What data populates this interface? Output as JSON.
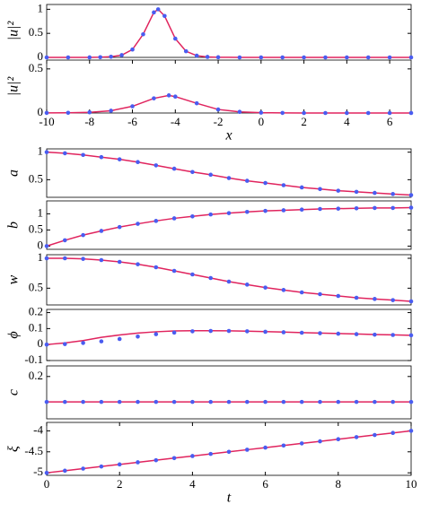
{
  "chart_data": [
    {
      "type": "line",
      "ylabel": "|u|²",
      "x": [
        -10,
        -9,
        -8,
        -7.5,
        -7,
        -6.5,
        -6,
        -5.5,
        -5,
        -4.8,
        -4.5,
        -4,
        -3.5,
        -3,
        -2.5,
        -2,
        -1,
        0,
        1,
        2,
        3,
        4,
        5,
        6,
        7
      ],
      "series": [
        {
          "color": "#e0245e",
          "mode": "line",
          "values": [
            0,
            0,
            0.001,
            0.004,
            0.013,
            0.047,
            0.164,
            0.48,
            0.935,
            1,
            0.862,
            0.39,
            0.128,
            0.036,
            0.01,
            0.003,
            0,
            0,
            0,
            0,
            0,
            0,
            0,
            0,
            0
          ]
        },
        {
          "color": "#4a5cf0",
          "mode": "markers",
          "values": [
            0,
            0,
            0.001,
            0.004,
            0.013,
            0.047,
            0.164,
            0.48,
            0.935,
            1,
            0.862,
            0.39,
            0.128,
            0.036,
            0.01,
            0.003,
            0,
            0,
            0,
            0,
            0,
            0,
            0,
            0,
            0
          ]
        }
      ],
      "xlim": [
        -10,
        7
      ],
      "ylim": [
        0,
        1.1
      ],
      "yticks": [
        0,
        0.5,
        1
      ]
    },
    {
      "type": "line",
      "ylabel": "|u|²",
      "xlabel": "x",
      "x": [
        -10,
        -9,
        -8,
        -7,
        -6,
        -5,
        -4.3,
        -4,
        -3,
        -2,
        -1,
        0,
        1,
        2,
        3,
        4,
        5,
        6,
        7
      ],
      "series": [
        {
          "color": "#e0245e",
          "mode": "line",
          "values": [
            0.001,
            0.002,
            0.008,
            0.026,
            0.076,
            0.166,
            0.2,
            0.186,
            0.11,
            0.04,
            0.013,
            0.004,
            0.001,
            0,
            0,
            0,
            0,
            0,
            0
          ]
        },
        {
          "color": "#4a5cf0",
          "mode": "markers",
          "values": [
            0.001,
            0.002,
            0.008,
            0.026,
            0.076,
            0.166,
            0.2,
            0.186,
            0.11,
            0.04,
            0.013,
            0.004,
            0.001,
            0,
            0,
            0,
            0,
            0,
            0
          ]
        }
      ],
      "xlim": [
        -10,
        7
      ],
      "ylim": [
        0,
        0.6
      ],
      "yticks": [
        0,
        0.5
      ],
      "xticks": [
        -10,
        -8,
        -6,
        -4,
        -2,
        0,
        2,
        4,
        6
      ]
    },
    {
      "type": "line",
      "ylabel": "a",
      "x": [
        0,
        0.5,
        1,
        1.5,
        2,
        2.5,
        3,
        3.5,
        4,
        4.5,
        5,
        5.5,
        6,
        6.5,
        7,
        7.5,
        8,
        8.5,
        9,
        9.5,
        10
      ],
      "series": [
        {
          "color": "#e0245e",
          "mode": "line",
          "values": [
            1,
            0.98,
            0.95,
            0.91,
            0.87,
            0.82,
            0.76,
            0.7,
            0.64,
            0.59,
            0.53,
            0.48,
            0.44,
            0.4,
            0.36,
            0.33,
            0.3,
            0.28,
            0.26,
            0.24,
            0.22
          ]
        },
        {
          "color": "#4a5cf0",
          "mode": "markers",
          "values": [
            1,
            0.98,
            0.95,
            0.91,
            0.87,
            0.82,
            0.76,
            0.7,
            0.64,
            0.59,
            0.53,
            0.48,
            0.44,
            0.4,
            0.36,
            0.33,
            0.3,
            0.28,
            0.26,
            0.24,
            0.22
          ]
        }
      ],
      "xlim": [
        0,
        10
      ],
      "ylim": [
        0.18,
        1.06
      ],
      "yticks": [
        0.5,
        1
      ]
    },
    {
      "type": "line",
      "ylabel": "b",
      "x": [
        0,
        0.5,
        1,
        1.5,
        2,
        2.5,
        3,
        3.5,
        4,
        4.5,
        5,
        5.5,
        6,
        6.5,
        7,
        7.5,
        8,
        8.5,
        9,
        9.5,
        10
      ],
      "series": [
        {
          "color": "#e0245e",
          "mode": "line",
          "values": [
            0,
            0.18,
            0.34,
            0.47,
            0.59,
            0.69,
            0.78,
            0.86,
            0.92,
            0.98,
            1.02,
            1.06,
            1.09,
            1.11,
            1.13,
            1.15,
            1.16,
            1.17,
            1.18,
            1.18,
            1.19
          ]
        },
        {
          "color": "#4a5cf0",
          "mode": "markers",
          "values": [
            0,
            0.18,
            0.34,
            0.47,
            0.59,
            0.69,
            0.78,
            0.86,
            0.92,
            0.98,
            1.02,
            1.06,
            1.09,
            1.11,
            1.13,
            1.15,
            1.16,
            1.17,
            1.18,
            1.18,
            1.19
          ]
        }
      ],
      "xlim": [
        0,
        10
      ],
      "ylim": [
        -0.1,
        1.4
      ],
      "yticks": [
        0,
        0.5,
        1
      ]
    },
    {
      "type": "line",
      "ylabel": "w",
      "x": [
        0,
        0.5,
        1,
        1.5,
        2,
        2.5,
        3,
        3.5,
        4,
        4.5,
        5,
        5.5,
        6,
        6.5,
        7,
        7.5,
        8,
        8.5,
        9,
        9.5,
        10
      ],
      "series": [
        {
          "color": "#e0245e",
          "mode": "line",
          "values": [
            1,
            1,
            0.99,
            0.97,
            0.94,
            0.9,
            0.85,
            0.79,
            0.73,
            0.67,
            0.61,
            0.56,
            0.51,
            0.47,
            0.43,
            0.4,
            0.37,
            0.34,
            0.32,
            0.3,
            0.28
          ]
        },
        {
          "color": "#4a5cf0",
          "mode": "markers",
          "values": [
            1,
            1,
            0.99,
            0.97,
            0.94,
            0.9,
            0.85,
            0.79,
            0.73,
            0.67,
            0.61,
            0.56,
            0.51,
            0.47,
            0.43,
            0.4,
            0.37,
            0.34,
            0.32,
            0.3,
            0.28
          ]
        }
      ],
      "xlim": [
        0,
        10
      ],
      "ylim": [
        0.22,
        1.06
      ],
      "yticks": [
        0.5,
        1
      ]
    },
    {
      "type": "line",
      "ylabel": "ϕ",
      "x": [
        0,
        0.5,
        1,
        1.5,
        2,
        2.5,
        3,
        3.5,
        4,
        4.5,
        5,
        5.5,
        6,
        6.5,
        7,
        7.5,
        8,
        8.5,
        9,
        9.5,
        10
      ],
      "series": [
        {
          "color": "#e0245e",
          "mode": "line",
          "values": [
            0,
            0.01,
            0.025,
            0.045,
            0.06,
            0.072,
            0.08,
            0.085,
            0.087,
            0.087,
            0.086,
            0.084,
            0.081,
            0.078,
            0.075,
            0.072,
            0.069,
            0.066,
            0.063,
            0.061,
            0.058
          ]
        },
        {
          "color": "#4a5cf0",
          "mode": "markers",
          "values": [
            0,
            0.003,
            0.01,
            0.02,
            0.035,
            0.05,
            0.065,
            0.075,
            0.083,
            0.085,
            0.085,
            0.083,
            0.08,
            0.077,
            0.074,
            0.071,
            0.068,
            0.065,
            0.062,
            0.06,
            0.058
          ]
        }
      ],
      "xlim": [
        0,
        10
      ],
      "ylim": [
        -0.1,
        0.22
      ],
      "yticks": [
        -0.1,
        0,
        0.1,
        0.2
      ]
    },
    {
      "type": "line",
      "ylabel": "c",
      "x": [
        0,
        0.5,
        1,
        1.5,
        2,
        2.5,
        3,
        3.5,
        4,
        4.5,
        5,
        5.5,
        6,
        6.5,
        7,
        7.5,
        8,
        8.5,
        9,
        9.5,
        10
      ],
      "series": [
        {
          "color": "#e0245e",
          "mode": "line",
          "values": [
            0.08,
            0.08,
            0.08,
            0.08,
            0.08,
            0.08,
            0.08,
            0.08,
            0.08,
            0.08,
            0.08,
            0.08,
            0.08,
            0.08,
            0.08,
            0.08,
            0.08,
            0.08,
            0.08,
            0.08,
            0.08
          ]
        },
        {
          "color": "#4a5cf0",
          "mode": "markers",
          "values": [
            0.08,
            0.08,
            0.08,
            0.08,
            0.08,
            0.08,
            0.08,
            0.08,
            0.08,
            0.08,
            0.08,
            0.08,
            0.08,
            0.08,
            0.08,
            0.08,
            0.08,
            0.08,
            0.08,
            0.08,
            0.08
          ]
        }
      ],
      "xlim": [
        0,
        10
      ],
      "ylim": [
        0,
        0.25
      ],
      "yticks": [
        0.2
      ]
    },
    {
      "type": "line",
      "ylabel": "ξ",
      "xlabel": "t",
      "x": [
        0,
        0.5,
        1,
        1.5,
        2,
        2.5,
        3,
        3.5,
        4,
        4.5,
        5,
        5.5,
        6,
        6.5,
        7,
        7.5,
        8,
        8.5,
        9,
        9.5,
        10
      ],
      "series": [
        {
          "color": "#e0245e",
          "mode": "line",
          "values": [
            -5,
            -4.95,
            -4.9,
            -4.85,
            -4.8,
            -4.75,
            -4.7,
            -4.65,
            -4.6,
            -4.55,
            -4.5,
            -4.45,
            -4.4,
            -4.35,
            -4.3,
            -4.25,
            -4.2,
            -4.15,
            -4.1,
            -4.05,
            -4
          ]
        },
        {
          "color": "#4a5cf0",
          "mode": "markers",
          "values": [
            -5,
            -4.95,
            -4.9,
            -4.85,
            -4.8,
            -4.75,
            -4.7,
            -4.65,
            -4.6,
            -4.55,
            -4.5,
            -4.45,
            -4.4,
            -4.35,
            -4.3,
            -4.25,
            -4.2,
            -4.15,
            -4.1,
            -4.05,
            -4
          ]
        }
      ],
      "xlim": [
        0,
        10
      ],
      "ylim": [
        -5.06,
        -3.8
      ],
      "yticks": [
        -5,
        -4.5,
        -4
      ],
      "xticks": [
        0,
        2,
        4,
        6,
        8,
        10
      ]
    }
  ]
}
